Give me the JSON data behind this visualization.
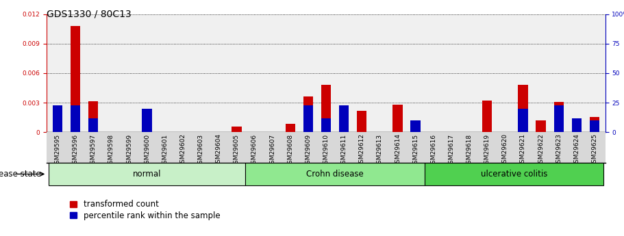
{
  "title": "GDS1330 / 80C13",
  "samples": [
    "GSM29595",
    "GSM29596",
    "GSM29597",
    "GSM29598",
    "GSM29599",
    "GSM29600",
    "GSM29601",
    "GSM29602",
    "GSM29603",
    "GSM29604",
    "GSM29605",
    "GSM29606",
    "GSM29607",
    "GSM29608",
    "GSM29609",
    "GSM29610",
    "GSM29611",
    "GSM29612",
    "GSM29613",
    "GSM29614",
    "GSM29615",
    "GSM29616",
    "GSM29617",
    "GSM29618",
    "GSM29619",
    "GSM29620",
    "GSM29621",
    "GSM29622",
    "GSM29623",
    "GSM29624",
    "GSM29625"
  ],
  "red_values": [
    0.00185,
    0.0108,
    0.00315,
    0.0,
    0.0,
    0.00085,
    0.0,
    0.0,
    0.0,
    0.0,
    0.00055,
    0.0,
    0.0,
    0.00085,
    0.0036,
    0.0048,
    0.00215,
    0.0022,
    0.0,
    0.0028,
    0.0,
    0.0,
    0.0,
    0.0,
    0.0032,
    0.0,
    0.0048,
    0.0012,
    0.0031,
    0.00085,
    0.00155
  ],
  "blue_values_pct": [
    23,
    23,
    12,
    0,
    0,
    20,
    0,
    0,
    0,
    0,
    0,
    0,
    0,
    0,
    23,
    12,
    23,
    0,
    0,
    0,
    10,
    0,
    0,
    0,
    0,
    0,
    20,
    0,
    23,
    12,
    10
  ],
  "groups": [
    {
      "label": "normal",
      "start": 0,
      "end": 10,
      "color": "#c8f0c8"
    },
    {
      "label": "Crohn disease",
      "start": 11,
      "end": 20,
      "color": "#90e890"
    },
    {
      "label": "ulcerative colitis",
      "start": 21,
      "end": 30,
      "color": "#50d050"
    }
  ],
  "ylim_left": [
    0,
    0.012
  ],
  "ylim_right": [
    0,
    100
  ],
  "yticks_left": [
    0,
    0.003,
    0.006,
    0.009,
    0.012
  ],
  "yticks_right": [
    0,
    25,
    50,
    75,
    100
  ],
  "red_color": "#cc0000",
  "blue_color": "#0000bb",
  "bg_color": "#d8d8d8",
  "plot_bg": "#f0f0f0",
  "disease_state_label": "disease state",
  "legend_red": "transformed count",
  "legend_blue": "percentile rank within the sample",
  "title_fontsize": 10,
  "tick_fontsize": 6.5,
  "label_fontsize": 8.5
}
